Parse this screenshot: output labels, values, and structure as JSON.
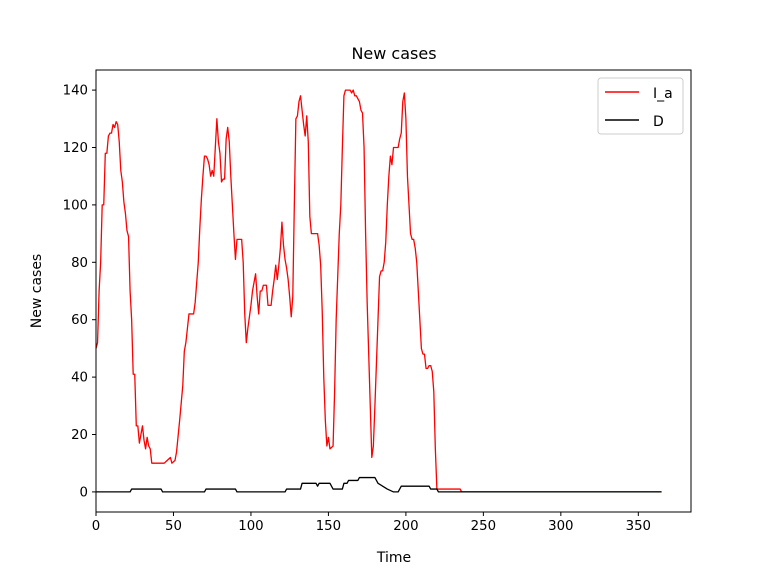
{
  "chart_data": {
    "type": "line",
    "title": "New cases",
    "xlabel": "Time",
    "ylabel": "New cases",
    "xlim": [
      0,
      384
    ],
    "ylim": [
      -7,
      147
    ],
    "xticks": [
      0,
      50,
      100,
      150,
      200,
      250,
      300,
      350
    ],
    "yticks": [
      0,
      20,
      40,
      60,
      80,
      100,
      120,
      140
    ],
    "grid": false,
    "legend_position": "top-right",
    "series": [
      {
        "name": "I_a",
        "color": "#ff0000",
        "points": [
          [
            0,
            50
          ],
          [
            1,
            52
          ],
          [
            2,
            70
          ],
          [
            3,
            80
          ],
          [
            4,
            100
          ],
          [
            5,
            100
          ],
          [
            6,
            118
          ],
          [
            7,
            118
          ],
          [
            8,
            124
          ],
          [
            9,
            125
          ],
          [
            10,
            125
          ],
          [
            11,
            128
          ],
          [
            12,
            127
          ],
          [
            13,
            129
          ],
          [
            14,
            128
          ],
          [
            15,
            122
          ],
          [
            16,
            112
          ],
          [
            17,
            108
          ],
          [
            18,
            101
          ],
          [
            19,
            97
          ],
          [
            20,
            91
          ],
          [
            21,
            89
          ],
          [
            22,
            70
          ],
          [
            23,
            60
          ],
          [
            24,
            41
          ],
          [
            25,
            41
          ],
          [
            26,
            23
          ],
          [
            27,
            23
          ],
          [
            28,
            17
          ],
          [
            29,
            20
          ],
          [
            30,
            23
          ],
          [
            31,
            18
          ],
          [
            32,
            15
          ],
          [
            33,
            19
          ],
          [
            34,
            16
          ],
          [
            35,
            15
          ],
          [
            36,
            10
          ],
          [
            40,
            10
          ],
          [
            44,
            10
          ],
          [
            46,
            11
          ],
          [
            48,
            12
          ],
          [
            49,
            10
          ],
          [
            51,
            11
          ],
          [
            52,
            14
          ],
          [
            54,
            25
          ],
          [
            56,
            37
          ],
          [
            57,
            49
          ],
          [
            58,
            52
          ],
          [
            59,
            57
          ],
          [
            60,
            62
          ],
          [
            63,
            62
          ],
          [
            64,
            66
          ],
          [
            66,
            80
          ],
          [
            67,
            92
          ],
          [
            68,
            102
          ],
          [
            69,
            110
          ],
          [
            70,
            117
          ],
          [
            71,
            117
          ],
          [
            72,
            116
          ],
          [
            73,
            114
          ],
          [
            74,
            110
          ],
          [
            75,
            112
          ],
          [
            76,
            110
          ],
          [
            77,
            120
          ],
          [
            78,
            130
          ],
          [
            79,
            122
          ],
          [
            80,
            118
          ],
          [
            81,
            108
          ],
          [
            82,
            109
          ],
          [
            83,
            109
          ],
          [
            84,
            123
          ],
          [
            85,
            127
          ],
          [
            86,
            122
          ],
          [
            87,
            110
          ],
          [
            88,
            100
          ],
          [
            89,
            90
          ],
          [
            90,
            81
          ],
          [
            91,
            88
          ],
          [
            94,
            88
          ],
          [
            95,
            80
          ],
          [
            96,
            62
          ],
          [
            97,
            52
          ],
          [
            98,
            57
          ],
          [
            100,
            65
          ],
          [
            101,
            70
          ],
          [
            103,
            76
          ],
          [
            104,
            68
          ],
          [
            105,
            62
          ],
          [
            106,
            70
          ],
          [
            107,
            70
          ],
          [
            108,
            72
          ],
          [
            110,
            72
          ],
          [
            111,
            65
          ],
          [
            113,
            65
          ],
          [
            114,
            70
          ],
          [
            115,
            74
          ],
          [
            116,
            79
          ],
          [
            117,
            74
          ],
          [
            118,
            79
          ],
          [
            119,
            85
          ],
          [
            120,
            94
          ],
          [
            121,
            86
          ],
          [
            122,
            81
          ],
          [
            123,
            78
          ],
          [
            124,
            74
          ],
          [
            125,
            68
          ],
          [
            126,
            61
          ],
          [
            127,
            68
          ],
          [
            128,
            100
          ],
          [
            129,
            130
          ],
          [
            130,
            131
          ],
          [
            131,
            136
          ],
          [
            132,
            138
          ],
          [
            133,
            133
          ],
          [
            134,
            128
          ],
          [
            135,
            124
          ],
          [
            136,
            131
          ],
          [
            137,
            122
          ],
          [
            138,
            96
          ],
          [
            139,
            90
          ],
          [
            143,
            90
          ],
          [
            144,
            86
          ],
          [
            145,
            79
          ],
          [
            146,
            63
          ],
          [
            147,
            40
          ],
          [
            148,
            25
          ],
          [
            149,
            16
          ],
          [
            150,
            19
          ],
          [
            151,
            15
          ],
          [
            153,
            16
          ],
          [
            154,
            35
          ],
          [
            155,
            60
          ],
          [
            156,
            75
          ],
          [
            157,
            90
          ],
          [
            158,
            100
          ],
          [
            159,
            120
          ],
          [
            160,
            138
          ],
          [
            161,
            140
          ],
          [
            164,
            140
          ],
          [
            165,
            139
          ],
          [
            166,
            140
          ],
          [
            167,
            138
          ],
          [
            168,
            138
          ],
          [
            169,
            137
          ],
          [
            170,
            136
          ],
          [
            171,
            133
          ],
          [
            172,
            132
          ],
          [
            173,
            120
          ],
          [
            174,
            90
          ],
          [
            175,
            66
          ],
          [
            176,
            48
          ],
          [
            177,
            30
          ],
          [
            178,
            12
          ],
          [
            179,
            16
          ],
          [
            180,
            30
          ],
          [
            181,
            45
          ],
          [
            182,
            60
          ],
          [
            183,
            75
          ],
          [
            184,
            77
          ],
          [
            185,
            77
          ],
          [
            186,
            80
          ],
          [
            187,
            87
          ],
          [
            188,
            100
          ],
          [
            189,
            110
          ],
          [
            190,
            117
          ],
          [
            191,
            114
          ],
          [
            192,
            120
          ],
          [
            195,
            120
          ],
          [
            196,
            123
          ],
          [
            197,
            125
          ],
          [
            198,
            136
          ],
          [
            199,
            139
          ],
          [
            200,
            130
          ],
          [
            201,
            110
          ],
          [
            202,
            100
          ],
          [
            203,
            90
          ],
          [
            204,
            88
          ],
          [
            205,
            88
          ],
          [
            206,
            85
          ],
          [
            207,
            80
          ],
          [
            208,
            70
          ],
          [
            209,
            60
          ],
          [
            210,
            50
          ],
          [
            211,
            48
          ],
          [
            212,
            48
          ],
          [
            213,
            43
          ],
          [
            214,
            43
          ],
          [
            215,
            44
          ],
          [
            216,
            44
          ],
          [
            217,
            42
          ],
          [
            218,
            35
          ],
          [
            219,
            15
          ],
          [
            220,
            1
          ],
          [
            221,
            1
          ],
          [
            235,
            1
          ],
          [
            236,
            0
          ],
          [
            260,
            0
          ],
          [
            300,
            0
          ],
          [
            330,
            0
          ],
          [
            365,
            0
          ]
        ]
      },
      {
        "name": "D",
        "color": "#000000",
        "points": [
          [
            0,
            0
          ],
          [
            22,
            0
          ],
          [
            23,
            1
          ],
          [
            42,
            1
          ],
          [
            43,
            0
          ],
          [
            70,
            0
          ],
          [
            71,
            1
          ],
          [
            90,
            1
          ],
          [
            91,
            0
          ],
          [
            122,
            0
          ],
          [
            123,
            1
          ],
          [
            132,
            1
          ],
          [
            133,
            3
          ],
          [
            142,
            3
          ],
          [
            143,
            2
          ],
          [
            144,
            3
          ],
          [
            151,
            3
          ],
          [
            152,
            2
          ],
          [
            153,
            1
          ],
          [
            159,
            1
          ],
          [
            160,
            3
          ],
          [
            162,
            3
          ],
          [
            163,
            4
          ],
          [
            165,
            4
          ],
          [
            166,
            4
          ],
          [
            169,
            4
          ],
          [
            170,
            5
          ],
          [
            180,
            5
          ],
          [
            181,
            4
          ],
          [
            182,
            3
          ],
          [
            185,
            2
          ],
          [
            188,
            1
          ],
          [
            192,
            0
          ],
          [
            195,
            0
          ],
          [
            196,
            1
          ],
          [
            197,
            2
          ],
          [
            215,
            2
          ],
          [
            216,
            1
          ],
          [
            220,
            1
          ],
          [
            221,
            0
          ],
          [
            260,
            0
          ],
          [
            300,
            0
          ],
          [
            330,
            0
          ],
          [
            365,
            0
          ]
        ]
      }
    ]
  }
}
